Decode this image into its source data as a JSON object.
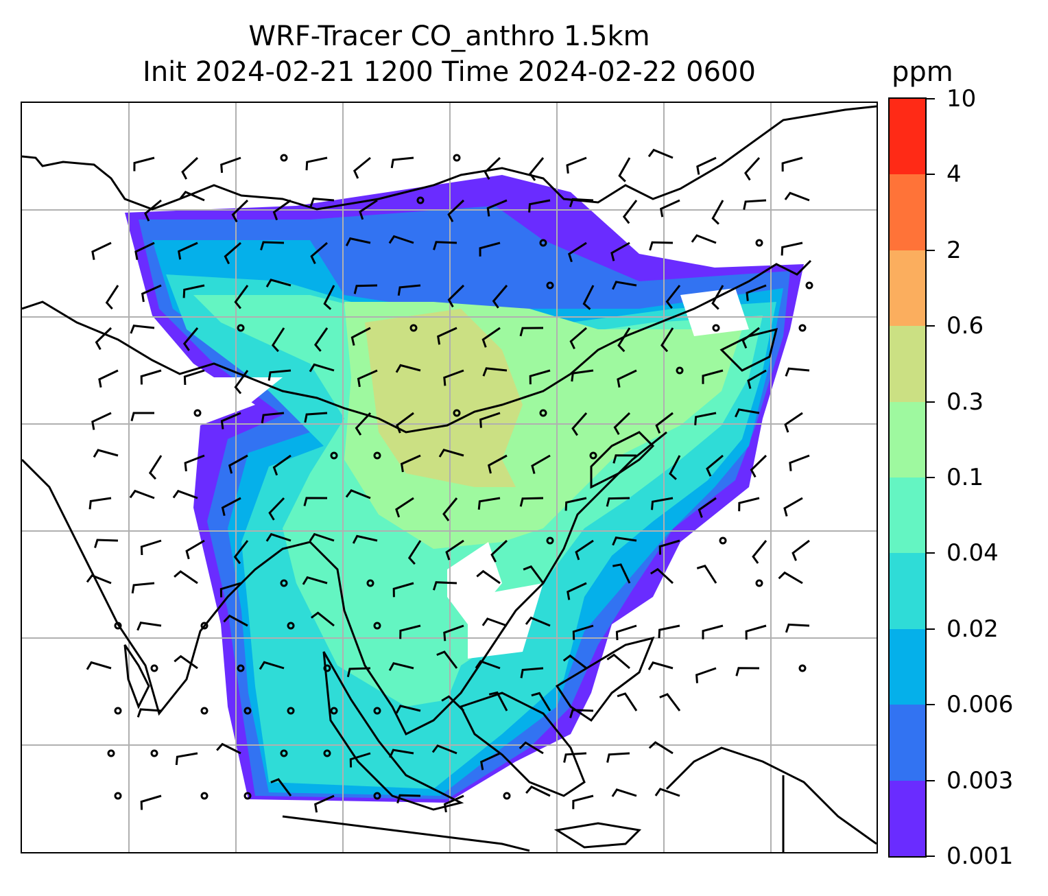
{
  "title_line1": "WRF-Tracer CO_anthro 1.5km",
  "title_line2": "Init 2024-02-21 1200 Time 2024-02-22 0600",
  "colorbar": {
    "unit": "ppm",
    "levels": [
      "0.001",
      "0.003",
      "0.006",
      "0.02",
      "0.04",
      "0.1",
      "0.3",
      "0.6",
      "2",
      "4",
      "10"
    ],
    "colors": [
      "#6a2cff",
      "#3273f2",
      "#05b0ea",
      "#2fdcd7",
      "#64f5c2",
      "#9ef99f",
      "#cbe083",
      "#fbae5e",
      "#ff7338",
      "#ff2a16"
    ]
  },
  "map": {
    "gridlines": true,
    "field": "CO_anthro concentration",
    "overlay": "wind barbs and calm circles",
    "coastline_color": "#000000",
    "grid_color": "#b0b0b0"
  }
}
